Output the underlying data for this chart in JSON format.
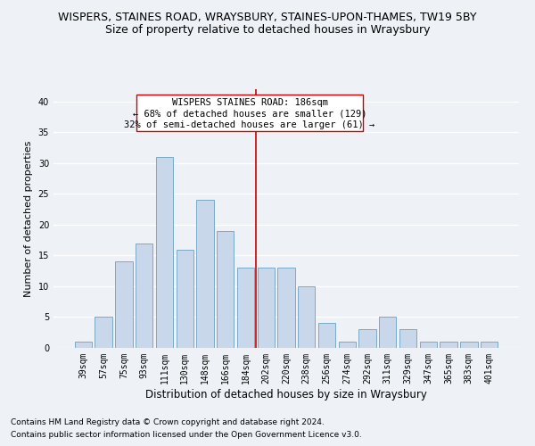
{
  "title": "WISPERS, STAINES ROAD, WRAYSBURY, STAINES-UPON-THAMES, TW19 5BY",
  "subtitle": "Size of property relative to detached houses in Wraysbury",
  "xlabel": "Distribution of detached houses by size in Wraysbury",
  "ylabel": "Number of detached properties",
  "categories": [
    "39sqm",
    "57sqm",
    "75sqm",
    "93sqm",
    "111sqm",
    "130sqm",
    "148sqm",
    "166sqm",
    "184sqm",
    "202sqm",
    "220sqm",
    "238sqm",
    "256sqm",
    "274sqm",
    "292sqm",
    "311sqm",
    "329sqm",
    "347sqm",
    "365sqm",
    "383sqm",
    "401sqm"
  ],
  "values": [
    1,
    5,
    14,
    17,
    31,
    16,
    24,
    19,
    13,
    13,
    13,
    10,
    4,
    1,
    3,
    5,
    3,
    1,
    1,
    1,
    1
  ],
  "bar_color": "#c8d8ea",
  "bar_edge_color": "#7aaac8",
  "bar_linewidth": 0.7,
  "vline_x": 8.5,
  "vline_color": "#cc0000",
  "vline_linewidth": 1.2,
  "annotation_title": "WISPERS STAINES ROAD: 186sqm",
  "annotation_line1": "← 68% of detached houses are smaller (129)",
  "annotation_line2": "32% of semi-detached houses are larger (61) →",
  "annotation_box_color": "#cc0000",
  "background_color": "#eef2f7",
  "grid_color": "#ffffff",
  "ylim": [
    0,
    42
  ],
  "yticks": [
    0,
    5,
    10,
    15,
    20,
    25,
    30,
    35,
    40
  ],
  "footnote1": "Contains HM Land Registry data © Crown copyright and database right 2024.",
  "footnote2": "Contains public sector information licensed under the Open Government Licence v3.0.",
  "title_fontsize": 9,
  "subtitle_fontsize": 9,
  "xlabel_fontsize": 8.5,
  "ylabel_fontsize": 8,
  "tick_fontsize": 7,
  "annotation_fontsize": 7.5,
  "footnote_fontsize": 6.5
}
